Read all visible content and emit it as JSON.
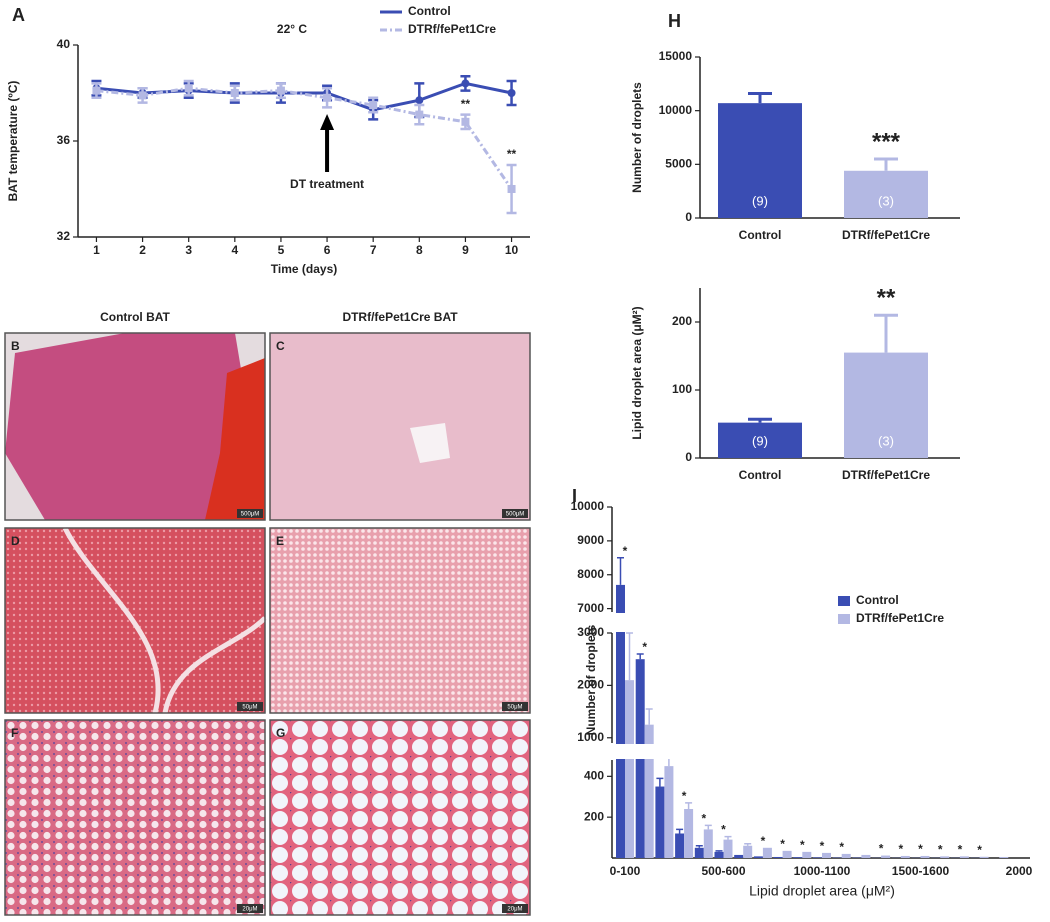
{
  "chart_data": [
    {
      "type": "line",
      "panel": "A",
      "title": "22° C",
      "x_label": "Time (days)",
      "y_label": "BAT temperature (ºC)",
      "x": [
        1,
        2,
        3,
        4,
        5,
        6,
        7,
        8,
        9,
        10
      ],
      "xlim": [
        0.6,
        10.4
      ],
      "xticks": [
        1,
        2,
        3,
        4,
        5,
        6,
        7,
        8,
        9,
        10
      ],
      "ylim": [
        32,
        40
      ],
      "yticks": [
        32,
        36,
        40
      ],
      "series": [
        {
          "name": "Control",
          "color": "#3a4db3",
          "line_style": "solid",
          "marker": "circle",
          "values": [
            38.2,
            38.0,
            38.1,
            38.0,
            38.0,
            38.0,
            37.3,
            37.7,
            38.4,
            38.0
          ],
          "errors": [
            0.3,
            0.2,
            0.3,
            0.4,
            0.4,
            0.3,
            0.4,
            0.7,
            0.3,
            0.5
          ]
        },
        {
          "name": "DTRf/fePet1Cre",
          "color": "#b3b8e3",
          "line_style": "dashdot",
          "marker": "square",
          "values": [
            38.1,
            37.9,
            38.2,
            38.0,
            38.1,
            37.8,
            37.5,
            37.1,
            36.8,
            34.0
          ],
          "errors": [
            0.3,
            0.3,
            0.3,
            0.3,
            0.3,
            0.4,
            0.3,
            0.4,
            0.3,
            1.0
          ]
        }
      ],
      "annotations": [
        {
          "text": "**",
          "x": 9
        },
        {
          "text": "**",
          "x": 10
        },
        {
          "text": "DT treatment",
          "x": 6,
          "arrow": true
        }
      ]
    },
    {
      "type": "bar",
      "panel": "H",
      "y_label": "Number of droplets",
      "categories": [
        "Control",
        "DTRf/fePet1Cre"
      ],
      "values": [
        10700,
        4400
      ],
      "errors": [
        900,
        1100
      ],
      "n_labels": [
        "(9)",
        "(3)"
      ],
      "significance": [
        null,
        "***"
      ],
      "colors": [
        "#3a4db3",
        "#b3b8e3"
      ],
      "ylim": [
        0,
        15000
      ],
      "yticks": [
        0,
        5000,
        10000,
        15000
      ]
    },
    {
      "type": "bar",
      "y_label": "Lipid droplet area (μM²)",
      "categories": [
        "Control",
        "DTRf/fePet1Cre"
      ],
      "values": [
        52,
        155
      ],
      "errors": [
        5,
        55
      ],
      "n_labels": [
        "(9)",
        "(3)"
      ],
      "significance": [
        null,
        "**"
      ],
      "colors": [
        "#3a4db3",
        "#b3b8e3"
      ],
      "ylim": [
        0,
        250
      ],
      "yticks": [
        0,
        100,
        200
      ]
    },
    {
      "type": "bar",
      "panel": "I",
      "x_label": "Lipid droplet area (μM²)",
      "y_label": "Number of droplets",
      "categories": [
        "0-100",
        null,
        null,
        null,
        null,
        "500-600",
        null,
        null,
        null,
        null,
        "1000-1100",
        null,
        null,
        null,
        null,
        "1500-1600",
        null,
        null,
        null,
        null,
        "2000"
      ],
      "series": [
        {
          "name": "Control",
          "color": "#3a4db3",
          "values": [
            7700,
            2500,
            350,
            120,
            50,
            30,
            15,
            8,
            5,
            4,
            3,
            2,
            2,
            1,
            1,
            1,
            1,
            1,
            1,
            0,
            0
          ],
          "errors": [
            800,
            100,
            40,
            20,
            10,
            5,
            null,
            null,
            null,
            null,
            null,
            null,
            null,
            null,
            null,
            null,
            null,
            null,
            null,
            null,
            null
          ]
        },
        {
          "name": "DTRf/fePet1Cre",
          "color": "#b3b8e3",
          "values": [
            2100,
            1250,
            450,
            240,
            140,
            90,
            60,
            50,
            35,
            30,
            25,
            20,
            15,
            12,
            10,
            10,
            8,
            8,
            6,
            5,
            0
          ],
          "errors": [
            900,
            300,
            60,
            30,
            20,
            15,
            10,
            null,
            null,
            null,
            null,
            null,
            null,
            null,
            null,
            null,
            null,
            null,
            null,
            null,
            null
          ]
        }
      ],
      "significance": [
        "*",
        "*",
        null,
        "*",
        "*",
        "*",
        null,
        "*",
        "*",
        "*",
        "*",
        "*",
        null,
        "*",
        "*",
        "*",
        "*",
        "*",
        "*",
        null,
        null
      ],
      "y_segments": [
        {
          "ylim": [
            0,
            480
          ],
          "yticks": [
            200,
            400
          ]
        },
        {
          "ylim": [
            900,
            3000
          ],
          "yticks": [
            1000,
            2000,
            3000
          ]
        },
        {
          "ylim": [
            6900,
            10000
          ],
          "yticks": [
            7000,
            8000,
            9000,
            10000
          ]
        }
      ]
    }
  ],
  "histology": {
    "column_titles": [
      "Control BAT",
      "DTRf/fePet1Cre BAT"
    ],
    "panels": [
      {
        "letter": "B",
        "scale_label": "500μM"
      },
      {
        "letter": "C",
        "scale_label": "500μM"
      },
      {
        "letter": "D",
        "scale_label": "50μM"
      },
      {
        "letter": "E",
        "scale_label": "50μM"
      },
      {
        "letter": "F",
        "scale_label": "20μM"
      },
      {
        "letter": "G",
        "scale_label": "20μM"
      }
    ]
  }
}
